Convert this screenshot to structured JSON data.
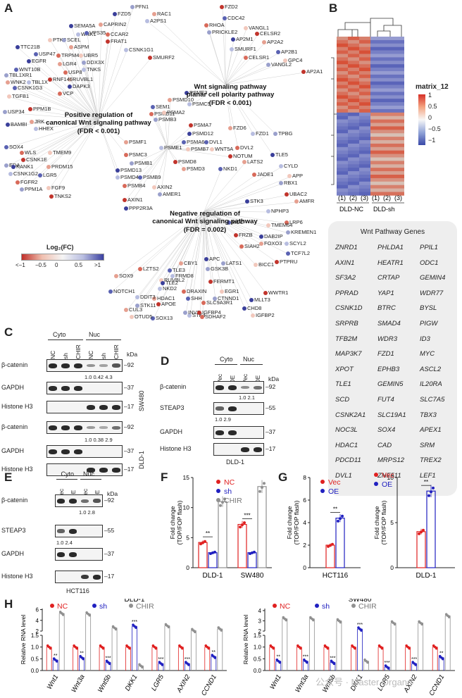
{
  "panels": {
    "A": "A",
    "B": "B",
    "C": "C",
    "D": "D",
    "E": "E",
    "F": "F",
    "G": "G",
    "H": "H"
  },
  "panelA": {
    "pathways": [
      {
        "title_line1": "Positive regulation of",
        "title_line2": "canonical Wnt signaling pathway",
        "title_line3": "(FDR < 0.001)"
      },
      {
        "title_line1": "Wnt signaling pathway",
        "title_line2": "planar cell polarity pathway",
        "title_line3": "(FDR < 0.001)"
      },
      {
        "title_line1": "Negative regulation of",
        "title_line2": "canonical Wnt signaling pathway",
        "title_line3": "(FDR = 0.002)"
      }
    ],
    "genes": [
      {
        "t": "PFN1"
      },
      {
        "t": "FZD2"
      },
      {
        "t": "FZD5"
      },
      {
        "t": "RAC1"
      },
      {
        "t": "A2PS1"
      },
      {
        "t": "CDC42"
      },
      {
        "t": "RHOA"
      },
      {
        "t": "VANGL1"
      },
      {
        "t": "PRICKLE2"
      },
      {
        "t": "CELSR2"
      },
      {
        "t": "AP2M1"
      },
      {
        "t": "AP2A2"
      },
      {
        "t": "SMURF1"
      },
      {
        "t": "AP2B1"
      },
      {
        "t": "CELSR1"
      },
      {
        "t": "GPC4"
      },
      {
        "t": "VANGL2"
      },
      {
        "t": "AP2A1"
      },
      {
        "t": "SEMA5A"
      },
      {
        "t": "CAPRIN2"
      },
      {
        "t": "WNK1"
      },
      {
        "t": "VPS35"
      },
      {
        "t": "CCAR2"
      },
      {
        "t": "PTK7"
      },
      {
        "t": "SCEL"
      },
      {
        "t": "FRAT1"
      },
      {
        "t": "TTC21B"
      },
      {
        "t": "ASPM"
      },
      {
        "t": "CSNK1G1"
      },
      {
        "t": "USP47"
      },
      {
        "t": "TRPM4"
      },
      {
        "t": "UBR5"
      },
      {
        "t": "DDX3X"
      },
      {
        "t": "SMURF2"
      },
      {
        "t": "EGFR"
      },
      {
        "t": "LGR4"
      },
      {
        "t": "TNKS"
      },
      {
        "t": "WNT10B"
      },
      {
        "t": "USP8"
      },
      {
        "t": "RUVBL1"
      },
      {
        "t": "TBL1XR1"
      },
      {
        "t": "RNF146"
      },
      {
        "t": "DAPK3"
      },
      {
        "t": "WNK2"
      },
      {
        "t": "TBL1X"
      },
      {
        "t": "CSNK1G3"
      },
      {
        "t": "VCP"
      },
      {
        "t": "TGFB1"
      },
      {
        "t": "USP34"
      },
      {
        "t": "PPM1B"
      },
      {
        "t": "BAMBI"
      },
      {
        "t": "JRK"
      },
      {
        "t": "HHEX"
      },
      {
        "t": "SOX4"
      },
      {
        "t": "WLS"
      },
      {
        "t": "TMEM9"
      },
      {
        "t": "EDA"
      },
      {
        "t": "CSNK1E"
      },
      {
        "t": "KANK1"
      },
      {
        "t": "PRDM15"
      },
      {
        "t": "CSNK1G2"
      },
      {
        "t": "LGR5"
      },
      {
        "t": "FGFR2"
      },
      {
        "t": "FGF9"
      },
      {
        "t": "PPM1A"
      },
      {
        "t": "TNKS2"
      },
      {
        "t": "PSME3"
      },
      {
        "t": "PSMD10"
      },
      {
        "t": "PSMC5"
      },
      {
        "t": "SEM1"
      },
      {
        "t": "PSMD11"
      },
      {
        "t": "PSMA2"
      },
      {
        "t": "PSMB3"
      },
      {
        "t": "PSMA7"
      },
      {
        "t": "PSMD12"
      },
      {
        "t": "PSMF1"
      },
      {
        "t": "PSME1"
      },
      {
        "t": "PSMA6"
      },
      {
        "t": "PSMC3"
      },
      {
        "t": "PSMB7"
      },
      {
        "t": "PSMB1"
      },
      {
        "t": "PSMD8"
      },
      {
        "t": "PSMD13"
      },
      {
        "t": "PSMD3"
      },
      {
        "t": "PSMD4"
      },
      {
        "t": "PSMB9"
      },
      {
        "t": "PSMB4"
      },
      {
        "t": "AXIN2"
      },
      {
        "t": "AMER1"
      },
      {
        "t": "AXIN1"
      },
      {
        "t": "PPP2R3A"
      },
      {
        "t": "FZD6"
      },
      {
        "t": "FZD1"
      },
      {
        "t": "DVL1"
      },
      {
        "t": "DVL2"
      },
      {
        "t": "WNT5A"
      },
      {
        "t": "TPBG"
      },
      {
        "t": "NOTUM"
      },
      {
        "t": "TLE5"
      },
      {
        "t": "LATS2"
      },
      {
        "t": "CYLD"
      },
      {
        "t": "NKD1"
      },
      {
        "t": "JADE1"
      },
      {
        "t": "APP"
      },
      {
        "t": "RBX1"
      },
      {
        "t": "UBAC2"
      },
      {
        "t": "STK3"
      },
      {
        "t": "AMFR"
      },
      {
        "t": "NPHP3"
      },
      {
        "t": "MCC"
      },
      {
        "t": "LRP6"
      },
      {
        "t": "TMEM64"
      },
      {
        "t": "KREMEN1"
      },
      {
        "t": "FRZB"
      },
      {
        "t": "DAB2IP"
      },
      {
        "t": "FOXO3"
      },
      {
        "t": "SCYL2"
      },
      {
        "t": "TCF7L2"
      },
      {
        "t": "SIAH2"
      },
      {
        "t": "BICC1"
      },
      {
        "t": "LATS1"
      },
      {
        "t": "PTPRU"
      },
      {
        "t": "APC"
      },
      {
        "t": "CBY1"
      },
      {
        "t": "FRMD8"
      },
      {
        "t": "TLE3"
      },
      {
        "t": "LZTS2"
      },
      {
        "t": "RUVBL2"
      },
      {
        "t": "GSK3B"
      },
      {
        "t": "FERMT1"
      },
      {
        "t": "TLE2"
      },
      {
        "t": "SOX9"
      },
      {
        "t": "NKD2"
      },
      {
        "t": "NOTCH1"
      },
      {
        "t": "DRAXIN"
      },
      {
        "t": "EGR1"
      },
      {
        "t": "CTNND1"
      },
      {
        "t": "WWTR1"
      },
      {
        "t": "MLLT3"
      },
      {
        "t": "HDAC1"
      },
      {
        "t": "DDIT3"
      },
      {
        "t": "SHH"
      },
      {
        "t": "SLC9A3R1"
      },
      {
        "t": "IGFBP2"
      },
      {
        "t": "STK11"
      },
      {
        "t": "APOE"
      },
      {
        "t": "CHD8"
      },
      {
        "t": "CUL3"
      },
      {
        "t": "STK4"
      },
      {
        "t": "SOX13"
      },
      {
        "t": "SDHAF2"
      },
      {
        "t": "OTUD5"
      },
      {
        "t": "INVS"
      },
      {
        "t": "IGFBP4"
      }
    ],
    "legend_title": "Log₂(FC)",
    "legend_ticks": [
      "<−1",
      "−0.5",
      "0",
      "0.5",
      ">1"
    ]
  },
  "panelB": {
    "legend_title": "matrix_12",
    "legend_ticks": [
      "1",
      "0.5",
      "0",
      "−0.5",
      "−1"
    ],
    "col_labels": [
      "(1)",
      "(2)",
      "(3)",
      "(1)",
      "(2)",
      "(3)"
    ],
    "group_labels": [
      "DLD-NC",
      "DLD-sh"
    ]
  },
  "wnt_box": {
    "header": "Wnt Pathway Genes",
    "col1": [
      "ZNRD1",
      "AXIN1",
      "SF3A2",
      "PPRAD",
      "CSNK1D",
      "SRPRB",
      "TFB2M",
      "MAP3K7",
      "XPOT",
      "TLE1",
      "SCD",
      "CSNK2A1",
      "NOC3L",
      "HDAC1",
      "PDCD11",
      "DVL1"
    ],
    "col2": [
      "PHLDA1",
      "HEATR1",
      "CRTAP",
      "YAP1",
      "BTRC",
      "SMAD4",
      "WDR3",
      "FZD1",
      "EPHB3",
      "GEMIN5",
      "FUT4",
      "SLC19A1",
      "SOX4",
      "CAD",
      "MRPS12",
      "ZNF511"
    ],
    "col3": [
      "PPIL1",
      "ODC1",
      "GEMIN4",
      "WDR77",
      "BYSL",
      "PIGW",
      "ID3",
      "MYC",
      "ASCL2",
      "IL20RA",
      "SLC7A5",
      "TBX3",
      "APEX1",
      "SRM",
      "TREX2",
      "LEF1"
    ]
  },
  "panelC": {
    "groups": [
      "Cyto",
      "Nuc"
    ],
    "lanes": [
      "NC",
      "sh",
      "CHIR",
      "NC",
      "sh",
      "CHIR"
    ],
    "kda": "kDa",
    "rows": [
      {
        "label": "β-catenin",
        "mw": "92"
      },
      {
        "label": "GAPDH",
        "mw": "37"
      },
      {
        "label": "Histone H3",
        "mw": "17"
      },
      {
        "label": "β-catenin",
        "mw": "92"
      },
      {
        "label": "GAPDH",
        "mw": "37"
      },
      {
        "label": "Histone H3",
        "mw": "17"
      }
    ],
    "quant1": "1.0  0.42  4.3",
    "quant2": "1.0  0.38  2.9",
    "cell1": "SW480",
    "cell2": "DLD-1"
  },
  "panelD": {
    "groups": [
      "Cyto",
      "Nuc"
    ],
    "lanes": [
      "Vec",
      "OE",
      "Vec",
      "OE"
    ],
    "kda": "kDa",
    "rows": [
      {
        "label": "β-catenin",
        "mw": "92"
      },
      {
        "label": "STEAP3",
        "mw": "55"
      },
      {
        "label": "GAPDH",
        "mw": "37"
      },
      {
        "label": "Histone H3",
        "mw": "17"
      }
    ],
    "quant1": "1.0  2.1",
    "quant2": "1.0  2.9",
    "cell": "DLD-1"
  },
  "panelE": {
    "groups": [
      "Cyto",
      "Nuc"
    ],
    "lanes": [
      "Vec",
      "OE",
      "Vec",
      "OE"
    ],
    "kda": "kDa",
    "rows": [
      {
        "label": "β-catenin",
        "mw": "92"
      },
      {
        "label": "STEAP3",
        "mw": "55"
      },
      {
        "label": "GAPDH",
        "mw": "37"
      },
      {
        "label": "Histone H3",
        "mw": "17"
      }
    ],
    "quant1": "1.0  2.8",
    "quant2": "1.0  2.4",
    "cell": "HCT116"
  },
  "chart_data": [
    {
      "id": "F",
      "type": "bar",
      "ylabel": "Fold change\n(TOP/FOP flash)",
      "ylim": [
        0,
        15
      ],
      "yticks": [
        "0",
        "5",
        "10",
        "15"
      ],
      "categories": [
        "DLD-1",
        "SW480"
      ],
      "series": [
        {
          "name": "NC",
          "color": "#e02020",
          "values": [
            4.2,
            7.2
          ]
        },
        {
          "name": "sh",
          "color": "#2020c0",
          "values": [
            2.5,
            2.5
          ]
        },
        {
          "name": "CHIR",
          "color": "#909090",
          "values": [
            11.0,
            13.5
          ]
        }
      ],
      "sig": [
        "**",
        "***"
      ]
    },
    {
      "id": "G1",
      "type": "bar",
      "ylabel": "Fold change\n(TOP/FOP flash)",
      "ylim": [
        0,
        8
      ],
      "yticks": [
        "0",
        "2",
        "4",
        "6",
        "8"
      ],
      "categories": [
        "HCT116"
      ],
      "series": [
        {
          "name": "Vec",
          "color": "#e02020",
          "values": [
            2.0
          ]
        },
        {
          "name": "OE",
          "color": "#2020c0",
          "values": [
            4.4
          ]
        }
      ],
      "sig": [
        "**"
      ]
    },
    {
      "id": "G2",
      "type": "bar",
      "ylabel": "Fold change\n(TOP/FOP flash)",
      "ylim": [
        0,
        10
      ],
      "yticks": [
        "0",
        "5",
        "10"
      ],
      "categories": [
        "DLD-1"
      ],
      "series": [
        {
          "name": "Vec",
          "color": "#e02020",
          "values": [
            4.0
          ]
        },
        {
          "name": "OE",
          "color": "#2020c0",
          "values": [
            8.5
          ]
        }
      ],
      "sig": [
        "**"
      ]
    },
    {
      "id": "H1",
      "type": "bar",
      "title": "DLD-1",
      "ylabel": "Relative RNA level",
      "yticks_low": [
        "0.0",
        "0.5",
        "1.0",
        "1.5"
      ],
      "yticks_high": [
        "2",
        "4",
        "6"
      ],
      "categories": [
        "Wnt1",
        "Wnt3a",
        "Wnt5b",
        "DKK1",
        "LGR5",
        "AXIN2",
        "CCND1"
      ],
      "series": [
        {
          "name": "NC",
          "color": "#e02020",
          "values": [
            1.0,
            1.0,
            1.0,
            1.0,
            1.0,
            1.0,
            1.0
          ]
        },
        {
          "name": "sh",
          "color": "#2020c0",
          "values": [
            0.45,
            0.55,
            0.35,
            2.9,
            0.3,
            0.3,
            0.6
          ]
        },
        {
          "name": "CHIR",
          "color": "#909090",
          "values": [
            5.3,
            5.2,
            2.6,
            0.2,
            3.0,
            2.1,
            2.4
          ]
        }
      ],
      "sig": [
        "**",
        "**",
        "***",
        "***",
        "***",
        "***",
        "**"
      ]
    },
    {
      "id": "H2",
      "type": "bar",
      "title": "SW480",
      "ylabel": "Relative RNA level",
      "yticks_low": [
        "0.0",
        "0.5",
        "1.0",
        "1.5"
      ],
      "yticks_high": [
        "2",
        "3",
        "4"
      ],
      "categories": [
        "Wnt1",
        "Wnt3a",
        "Wnt5b",
        "DKK1",
        "LGR5",
        "AXIN2",
        "CCND1"
      ],
      "series": [
        {
          "name": "NC",
          "color": "#e02020",
          "values": [
            1.0,
            1.0,
            1.0,
            1.0,
            1.0,
            1.0,
            1.0
          ]
        },
        {
          "name": "sh",
          "color": "#2020c0",
          "values": [
            0.4,
            0.4,
            0.35,
            2.2,
            0.15,
            0.3,
            0.55
          ]
        },
        {
          "name": "CHIR",
          "color": "#909090",
          "values": [
            3.2,
            3.2,
            3.0,
            0.4,
            2.8,
            2.8,
            3.5
          ]
        }
      ],
      "sig": [
        "**",
        "***",
        "***",
        "***",
        "***",
        "***",
        "**"
      ]
    }
  ],
  "watermark": "公众号 · Master Organs"
}
